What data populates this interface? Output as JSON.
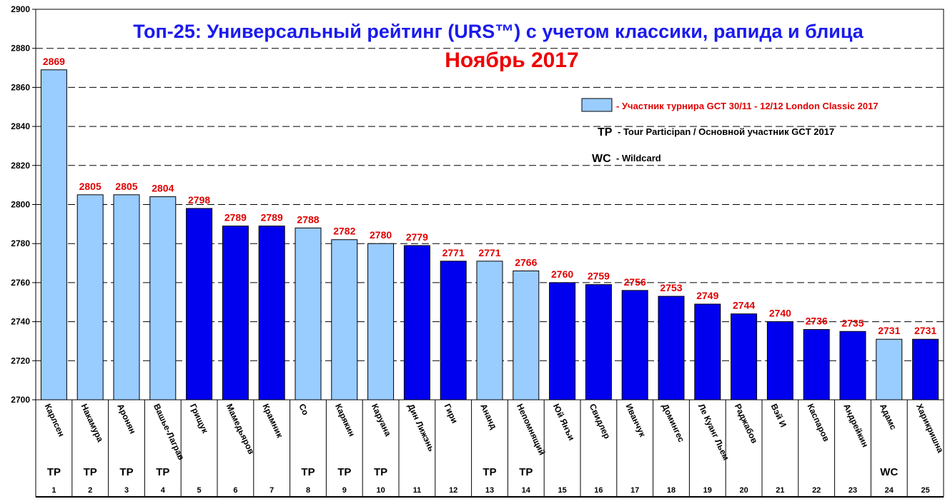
{
  "chart_data": {
    "type": "bar",
    "title": "Топ-25: Универсальный рейтинг (URS™) с учетом классики, рапида и блица",
    "subtitle": "Ноябрь 2017",
    "ylim": [
      2700,
      2900
    ],
    "ytick_step": 20,
    "grid": true,
    "colors": {
      "participant": "#99ccff",
      "other": "#0000ee",
      "value_label": "#e00000"
    },
    "legend": {
      "participant": "- Участник турнира GCT 30/11 - 12/12 London Classic 2017",
      "tp_key": "TP",
      "tp_text": "- Tour Participan / Основной участник GCT 2017",
      "wc_key": "WC",
      "wc_text": "- Wildcard"
    },
    "bars": [
      {
        "rank": "1",
        "name": "Карлсен",
        "value": 2869,
        "participant": true,
        "tag": "TP"
      },
      {
        "rank": "2",
        "name": "Накамура",
        "value": 2805,
        "participant": true,
        "tag": "TP"
      },
      {
        "rank": "3",
        "name": "Аронян",
        "value": 2805,
        "participant": true,
        "tag": "TP"
      },
      {
        "rank": "4",
        "name": "Вашье-Лаграв",
        "value": 2804,
        "participant": true,
        "tag": "TP"
      },
      {
        "rank": "5",
        "name": "Грищук",
        "value": 2798,
        "participant": false,
        "tag": ""
      },
      {
        "rank": "6",
        "name": "Мамедьяров",
        "value": 2789,
        "participant": false,
        "tag": ""
      },
      {
        "rank": "7",
        "name": "Крамник",
        "value": 2789,
        "participant": false,
        "tag": ""
      },
      {
        "rank": "8",
        "name": "Со",
        "value": 2788,
        "participant": true,
        "tag": "TP"
      },
      {
        "rank": "9",
        "name": "Карякин",
        "value": 2782,
        "participant": true,
        "tag": "TP"
      },
      {
        "rank": "10",
        "name": "Каруана",
        "value": 2780,
        "participant": true,
        "tag": "TP"
      },
      {
        "rank": "11",
        "name": "Дин Лижэнь",
        "value": 2779,
        "participant": false,
        "tag": ""
      },
      {
        "rank": "12",
        "name": "Гири",
        "value": 2771,
        "participant": false,
        "tag": ""
      },
      {
        "rank": "13",
        "name": "Ананд",
        "value": 2771,
        "participant": true,
        "tag": "TP"
      },
      {
        "rank": "14",
        "name": "Непомнящий",
        "value": 2766,
        "participant": true,
        "tag": "TP"
      },
      {
        "rank": "15",
        "name": "Юй Янъи",
        "value": 2760,
        "participant": false,
        "tag": ""
      },
      {
        "rank": "16",
        "name": "Свидлер",
        "value": 2759,
        "participant": false,
        "tag": ""
      },
      {
        "rank": "17",
        "name": "Иванчук",
        "value": 2756,
        "participant": false,
        "tag": ""
      },
      {
        "rank": "18",
        "name": "Домингес",
        "value": 2753,
        "participant": false,
        "tag": ""
      },
      {
        "rank": "19",
        "name": "Ле Куанг Льем",
        "value": 2749,
        "participant": false,
        "tag": ""
      },
      {
        "rank": "20",
        "name": "Раджабов",
        "value": 2744,
        "participant": false,
        "tag": ""
      },
      {
        "rank": "21",
        "name": "Вэй И",
        "value": 2740,
        "participant": false,
        "tag": ""
      },
      {
        "rank": "22",
        "name": "Каспаров",
        "value": 2736,
        "participant": false,
        "tag": ""
      },
      {
        "rank": "23",
        "name": "Андрейкин",
        "value": 2735,
        "participant": false,
        "tag": ""
      },
      {
        "rank": "24",
        "name": "Адамс",
        "value": 2731,
        "participant": true,
        "tag": "WC"
      },
      {
        "rank": "25",
        "name": "Харикришна",
        "value": 2731,
        "participant": false,
        "tag": ""
      }
    ]
  }
}
